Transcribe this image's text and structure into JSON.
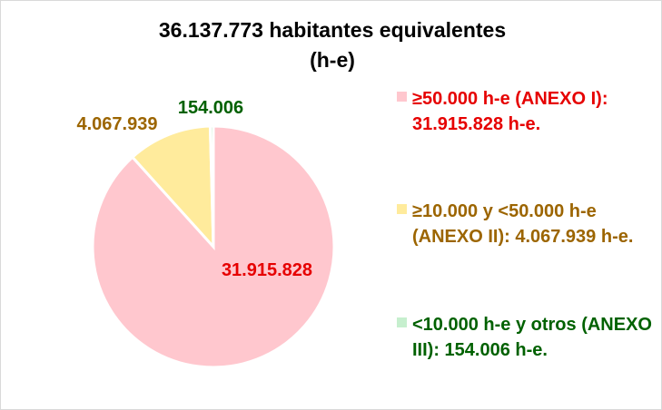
{
  "chart_data": {
    "type": "pie",
    "title": "36.137.773 habitantes equivalentes",
    "subtitle": "(h-e)",
    "categories": [
      "≥50.000 h-e (ANEXO I): 31.915.828 h-e.",
      "≥10.000 y <50.000 h-e (ANEXO  II): 4.067.939 h-e.",
      "<10.000 h-e y otros (ANEXO III): 154.006 h-e."
    ],
    "values": [
      31915828,
      4067939,
      154006
    ],
    "data_labels": [
      "31.915.828",
      "4.067.939",
      "154.006"
    ],
    "colors": [
      "#ffc7ce",
      "#ffeb9c",
      "#c6efce"
    ],
    "label_colors": [
      "#e60000",
      "#9c6500",
      "#006100"
    ],
    "legend_position": "right"
  }
}
